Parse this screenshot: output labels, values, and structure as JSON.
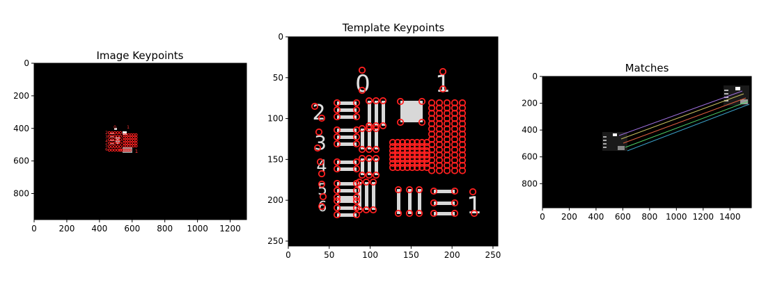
{
  "colors": {
    "keypoint": "#ff2020",
    "panel_bg": "#000000",
    "template_fg": "#d8d8d8"
  },
  "chart_data": [
    {
      "type": "image",
      "title": "Image Keypoints",
      "xlim": [
        0,
        1300
      ],
      "ylim": [
        960,
        0
      ],
      "x_ticks": [
        "0",
        "200",
        "400",
        "600",
        "800",
        "1000",
        "1200"
      ],
      "y_ticks": [
        "0",
        "200",
        "400",
        "600",
        "800"
      ],
      "digits": [
        "0",
        "1",
        "2",
        "3",
        "4",
        "5",
        "6",
        "1"
      ]
    },
    {
      "type": "image",
      "title": "Template Keypoints",
      "xlim": [
        0,
        256
      ],
      "ylim": [
        256,
        0
      ],
      "x_ticks": [
        "0",
        "50",
        "100",
        "150",
        "200",
        "250"
      ],
      "y_ticks": [
        "0",
        "50",
        "100",
        "150",
        "200",
        "250"
      ],
      "digits": [
        "0",
        "1",
        "2",
        "3",
        "4",
        "5",
        "6",
        "1"
      ]
    },
    {
      "type": "image",
      "title": "Matches",
      "xlim": [
        0,
        1560
      ],
      "ylim": [
        980,
        0
      ],
      "x_ticks": [
        "0",
        "200",
        "400",
        "600",
        "800",
        "1000",
        "1200",
        "1400"
      ],
      "y_ticks": [
        "0",
        "200",
        "400",
        "600",
        "800"
      ],
      "match_colors": [
        "#3aa0c8",
        "#4fd26a",
        "#e06040",
        "#c8c060",
        "#a070e0"
      ]
    }
  ]
}
